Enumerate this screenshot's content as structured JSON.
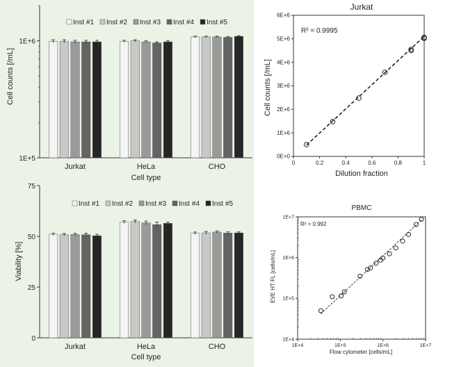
{
  "chart_data": [
    {
      "type": "bar",
      "title": "",
      "xlabel": "Cell type",
      "ylabel": "Cell counts [/mL]",
      "yscale": "log",
      "ylim": [
        100000,
        2000000
      ],
      "yticks": [
        "1E+5",
        "1E+6"
      ],
      "ytick_values": [
        100000,
        1000000
      ],
      "categories": [
        "Jurkat",
        "HeLa",
        "CHO"
      ],
      "legend_position": "top",
      "series": [
        {
          "name": "Inst #1",
          "color": "#f4f4f4",
          "values": [
            990000,
            990000,
            1080000
          ],
          "errors": [
            30000,
            20000,
            15000
          ]
        },
        {
          "name": "Inst #2",
          "color": "#c8c8c8",
          "values": [
            990000,
            1000000,
            1080000
          ],
          "errors": [
            30000,
            20000,
            15000
          ]
        },
        {
          "name": "Inst #3",
          "color": "#9a9a9a",
          "values": [
            980000,
            980000,
            1080000
          ],
          "errors": [
            30000,
            20000,
            15000
          ]
        },
        {
          "name": "Inst #4",
          "color": "#646464",
          "values": [
            980000,
            960000,
            1070000
          ],
          "errors": [
            30000,
            20000,
            15000
          ]
        },
        {
          "name": "Inst #5",
          "color": "#262626",
          "values": [
            980000,
            980000,
            1090000
          ],
          "errors": [
            30000,
            20000,
            15000
          ]
        }
      ]
    },
    {
      "type": "bar",
      "title": "",
      "xlabel": "Cell type",
      "ylabel": "Viability [%]",
      "ylim": [
        0,
        75
      ],
      "yticks": [
        "0",
        "25",
        "50",
        "75"
      ],
      "ytick_values": [
        0,
        25,
        50,
        75
      ],
      "categories": [
        "Jurkat",
        "HeLa",
        "CHO"
      ],
      "legend_position": "top",
      "series": [
        {
          "name": "Inst #1",
          "color": "#f4f4f4",
          "values": [
            51,
            57,
            51.5
          ],
          "errors": [
            0.5,
            0.7,
            0.6
          ]
        },
        {
          "name": "Inst #2",
          "color": "#c8c8c8",
          "values": [
            50.8,
            57.3,
            51.7
          ],
          "errors": [
            0.6,
            0.8,
            0.7
          ]
        },
        {
          "name": "Inst #3",
          "color": "#9a9a9a",
          "values": [
            50.9,
            56.6,
            52.1
          ],
          "errors": [
            0.6,
            0.9,
            0.6
          ]
        },
        {
          "name": "Inst #4",
          "color": "#646464",
          "values": [
            50.8,
            55.8,
            51.6
          ],
          "errors": [
            0.7,
            1.2,
            0.6
          ]
        },
        {
          "name": "Inst #5",
          "color": "#262626",
          "values": [
            50.3,
            56.4,
            51.7
          ],
          "errors": [
            0.7,
            0.6,
            0.5
          ]
        }
      ]
    },
    {
      "type": "scatter",
      "title": "Jurkat",
      "xlabel": "Dilution fraction",
      "ylabel": "Cell counts [/mL]",
      "xlim": [
        0,
        1
      ],
      "ylim": [
        0,
        6000000
      ],
      "xticks": [
        "0",
        "0.2",
        "0.4",
        "0.6",
        "0.8",
        "1"
      ],
      "xtick_values": [
        0,
        0.2,
        0.4,
        0.6,
        0.8,
        1
      ],
      "yticks": [
        "0E+0",
        "1E+6",
        "2E+6",
        "3E+6",
        "4E+6",
        "5E+6",
        "6E+6"
      ],
      "ytick_values": [
        0,
        1000000,
        2000000,
        3000000,
        4000000,
        5000000,
        6000000
      ],
      "annotation": "R² = 0.9995",
      "points": [
        {
          "x": 0.1,
          "y": 500000
        },
        {
          "x": 0.3,
          "y": 1480000
        },
        {
          "x": 0.5,
          "y": 2480000
        },
        {
          "x": 0.7,
          "y": 3580000
        },
        {
          "x": 0.9,
          "y": 4500000
        },
        {
          "x": 0.9,
          "y": 4550000
        },
        {
          "x": 1.0,
          "y": 5020000
        },
        {
          "x": 1.0,
          "y": 5060000
        }
      ],
      "trendline": {
        "x": [
          0.1,
          1.0
        ],
        "y": [
          480000,
          5100000
        ]
      }
    },
    {
      "type": "scatter",
      "title": "PBMC",
      "xlabel": "Flow cytometer [cells/mL]",
      "ylabel": "EVE HT FL [cells/mL]",
      "xscale": "log",
      "yscale": "log",
      "xlim": [
        10000,
        10000000
      ],
      "ylim": [
        10000,
        10000000
      ],
      "xticks": [
        "1E+4",
        "1E+5",
        "1E+6",
        "1E+7"
      ],
      "xtick_values": [
        10000,
        100000,
        1000000,
        10000000
      ],
      "yticks": [
        "1E+4",
        "1E+5",
        "1E+6",
        "1E+7"
      ],
      "ytick_values": [
        10000,
        100000,
        1000000,
        10000000
      ],
      "annotation": "R² = 0.992",
      "points": [
        {
          "x": 35000,
          "y": 50000
        },
        {
          "x": 65000,
          "y": 110000
        },
        {
          "x": 105000,
          "y": 115000
        },
        {
          "x": 125000,
          "y": 145000
        },
        {
          "x": 290000,
          "y": 350000
        },
        {
          "x": 430000,
          "y": 510000
        },
        {
          "x": 510000,
          "y": 560000
        },
        {
          "x": 690000,
          "y": 730000
        },
        {
          "x": 880000,
          "y": 870000
        },
        {
          "x": 1000000,
          "y": 980000
        },
        {
          "x": 1420000,
          "y": 1240000
        },
        {
          "x": 2000000,
          "y": 1730000
        },
        {
          "x": 2900000,
          "y": 2550000
        },
        {
          "x": 4000000,
          "y": 3700000
        },
        {
          "x": 6000000,
          "y": 6500000
        },
        {
          "x": 8000000,
          "y": 8700000
        }
      ],
      "trendline": {
        "x": [
          35000,
          8500000
        ],
        "y": [
          42000,
          8900000
        ]
      }
    }
  ]
}
